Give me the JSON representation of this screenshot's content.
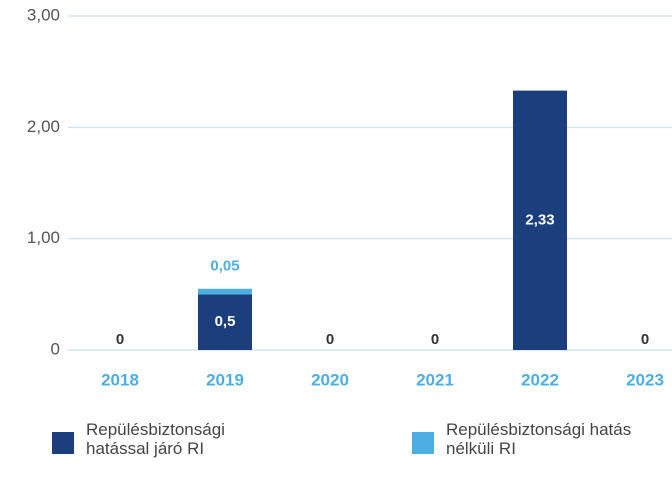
{
  "chart_data": {
    "type": "bar",
    "stacked": true,
    "categories": [
      "2018",
      "2019",
      "2020",
      "2021",
      "2022",
      "2023"
    ],
    "series": [
      {
        "name": "Repülésbiztonsági hatással járó RI",
        "color": "#1b3f7c",
        "values": [
          0,
          0.5,
          0,
          0,
          2.33,
          0
        ],
        "value_labels": [
          "0",
          "0,5",
          "0",
          "0",
          "2,33",
          "0"
        ]
      },
      {
        "name": "Repülésbiztonsági hatás nélküli RI",
        "color": "#4daee4",
        "values": [
          0,
          0.05,
          0,
          0,
          0,
          0
        ],
        "value_labels": [
          null,
          "0,05",
          null,
          null,
          null,
          null
        ]
      }
    ],
    "ylim": [
      0,
      3
    ],
    "yticks": [
      0,
      {
        "value": 1,
        "label": "1,00"
      },
      {
        "value": 2,
        "label": "2,00"
      },
      {
        "value": 3,
        "label": "3,00"
      }
    ],
    "grid": true,
    "legend": "bottom"
  }
}
